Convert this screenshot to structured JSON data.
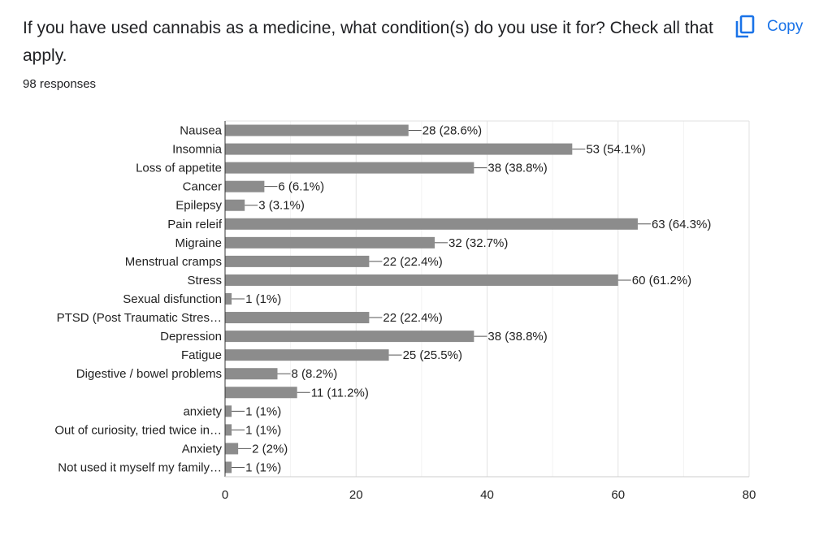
{
  "question": {
    "title": "If you have used cannabis as a medicine, what condition(s) do you use it for? Check all that apply.",
    "responses": "98 responses"
  },
  "copy_button": {
    "label": "Copy",
    "icon": "copy-icon",
    "color": "#1a73e8"
  },
  "colors": {
    "bar": "#8c8c8c",
    "grid": "#e6e6e6",
    "axis": "#333333",
    "text": "#222222"
  },
  "chart_data": {
    "type": "bar",
    "orientation": "horizontal",
    "categories": [
      "Nausea",
      "Insomnia",
      "Loss of appetite",
      "Cancer",
      "Epilepsy",
      "Pain releif",
      "Migraine",
      "Menstrual cramps",
      "Stress",
      "Sexual disfunction",
      "PTSD (Post Traumatic Stres…",
      "Depression",
      "Fatigue",
      "Digestive / bowel problems",
      "",
      "anxiety",
      "Out of curiosity, tried twice in…",
      "Anxiety",
      "Not used it myself my family…"
    ],
    "values": [
      28,
      53,
      38,
      6,
      3,
      63,
      32,
      22,
      60,
      1,
      22,
      38,
      25,
      8,
      11,
      1,
      1,
      2,
      1
    ],
    "data_labels": [
      "28 (28.6%)",
      "53 (54.1%)",
      "38 (38.8%)",
      "6 (6.1%)",
      "3 (3.1%)",
      "63 (64.3%)",
      "32 (32.7%)",
      "22 (22.4%)",
      "60 (61.2%)",
      "1 (1%)",
      "22 (22.4%)",
      "38 (38.8%)",
      "25 (25.5%)",
      "8 (8.2%)",
      "11 (11.2%)",
      "1 (1%)",
      "1 (1%)",
      "2 (2%)",
      "1 (1%)"
    ],
    "xlim": [
      0,
      80
    ],
    "xticks": [
      "0",
      "20",
      "40",
      "60",
      "80"
    ],
    "grid": true
  }
}
